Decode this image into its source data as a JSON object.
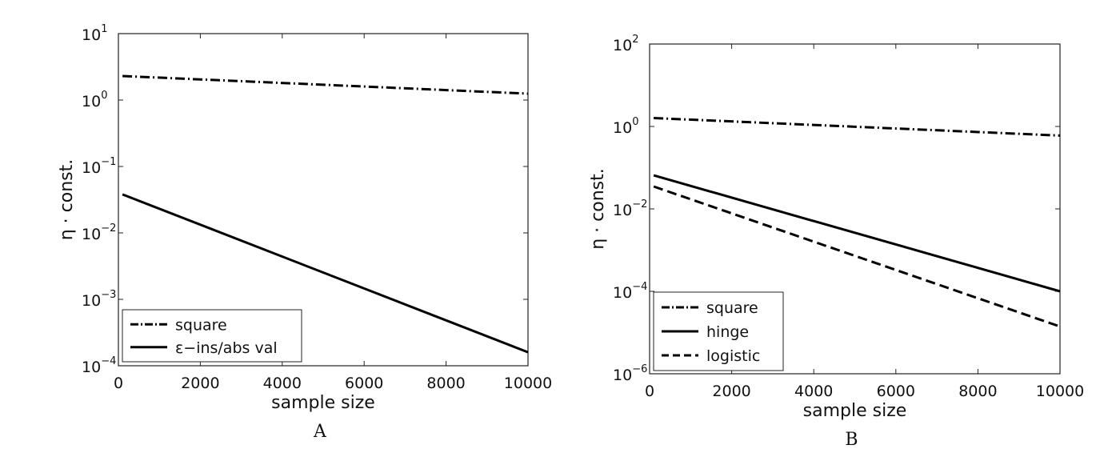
{
  "chart_data": [
    {
      "type": "line",
      "panel_label": "A",
      "xlabel": "sample size",
      "ylabel": "η · const.",
      "xlim": [
        0,
        10000
      ],
      "ylim": [
        0.0001,
        10
      ],
      "yscale": "log",
      "x_ticks": [
        0,
        2000,
        4000,
        6000,
        8000,
        10000
      ],
      "y_ticks": [
        {
          "value": 0.0001,
          "base": "10",
          "exp": "−4"
        },
        {
          "value": 0.001,
          "base": "10",
          "exp": "−3"
        },
        {
          "value": 0.01,
          "base": "10",
          "exp": "−2"
        },
        {
          "value": 0.1,
          "base": "10",
          "exp": "−1"
        },
        {
          "value": 1,
          "base": "10",
          "exp": "0"
        },
        {
          "value": 10,
          "base": "10",
          "exp": "1"
        }
      ],
      "grid": false,
      "legend_position": "bottom-left",
      "series": [
        {
          "name": "square",
          "style": "dashdot",
          "x": [
            100,
            10000
          ],
          "y": [
            2.3,
            1.25
          ]
        },
        {
          "name": "ε−ins/abs val",
          "style": "solid",
          "x": [
            100,
            10000
          ],
          "y": [
            0.038,
            0.00016
          ]
        }
      ]
    },
    {
      "type": "line",
      "panel_label": "B",
      "xlabel": "sample size",
      "ylabel": "η · const.",
      "xlim": [
        0,
        10000
      ],
      "ylim": [
        1e-06,
        100
      ],
      "yscale": "log",
      "x_ticks": [
        0,
        2000,
        4000,
        6000,
        8000,
        10000
      ],
      "y_ticks": [
        {
          "value": 1e-06,
          "base": "10",
          "exp": "−6"
        },
        {
          "value": 0.0001,
          "base": "10",
          "exp": "−4"
        },
        {
          "value": 0.01,
          "base": "10",
          "exp": "−2"
        },
        {
          "value": 1,
          "base": "10",
          "exp": "0"
        },
        {
          "value": 100,
          "base": "10",
          "exp": "2"
        }
      ],
      "grid": false,
      "legend_position": "bottom-left",
      "series": [
        {
          "name": "square",
          "style": "dashdot",
          "x": [
            100,
            10000
          ],
          "y": [
            1.6,
            0.6
          ]
        },
        {
          "name": "hinge",
          "style": "solid",
          "x": [
            100,
            10000
          ],
          "y": [
            0.065,
            0.0001
          ]
        },
        {
          "name": "logistic",
          "style": "dashed",
          "x": [
            100,
            10000
          ],
          "y": [
            0.035,
            1.4e-05
          ]
        }
      ]
    }
  ]
}
